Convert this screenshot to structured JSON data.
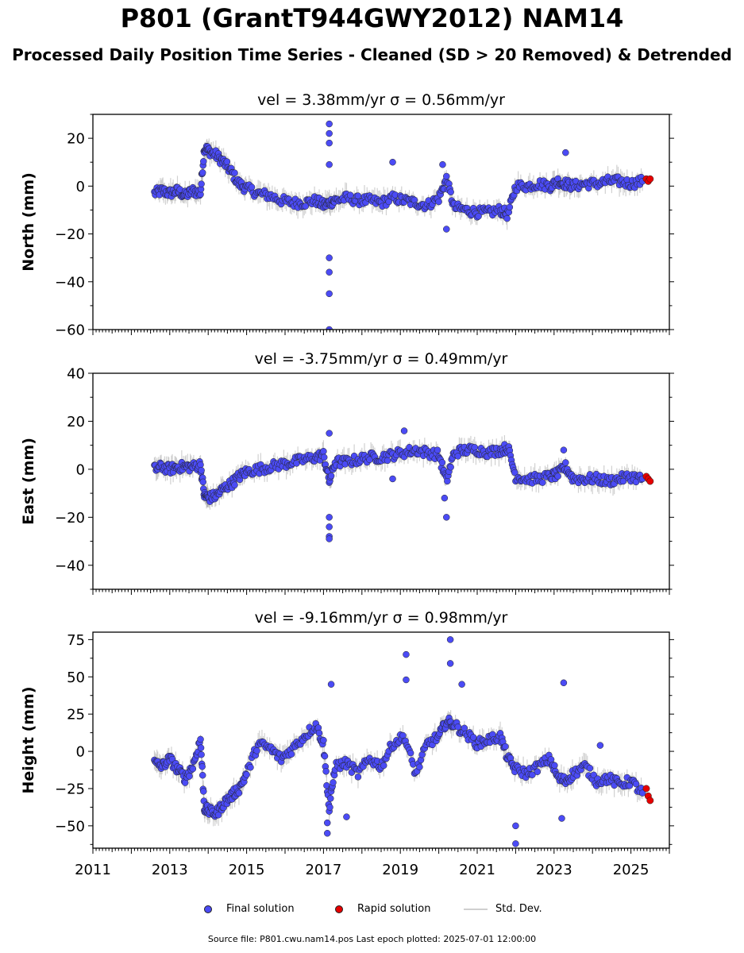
{
  "title": "P801 (GrantT944GWY2012) NAM14",
  "subtitle": "Processed Daily Position Time Series - Cleaned (SD > 20 Removed) & Detrended",
  "legend": {
    "final": "Final solution",
    "rapid": "Rapid solution",
    "std": "Std. Dev."
  },
  "footer": "Source file: P801.cwu.nam14.pos  Last epoch plotted: 2025-07-01 12:00:00",
  "colors": {
    "final": "#4b4bf5",
    "rapid": "#e60000",
    "std": "#999999",
    "edge": "#222222"
  },
  "chart_data": [
    {
      "type": "scatter",
      "title": "vel = 3.38mm/yr   σ = 0.56mm/yr",
      "ylabel": "North (mm)",
      "ylim": [
        -60,
        30
      ],
      "yticks": [
        -60,
        -40,
        -20,
        0,
        20
      ],
      "xlim": [
        2011,
        2026
      ],
      "series": [
        {
          "name": "Final solution",
          "x": [
            2012.6,
            2012.8,
            2013.0,
            2013.2,
            2013.4,
            2013.6,
            2013.8,
            2013.9,
            2014.0,
            2014.2,
            2014.4,
            2014.6,
            2014.8,
            2015.0,
            2015.3,
            2015.6,
            2015.9,
            2016.2,
            2016.5,
            2016.8,
            2017.0,
            2017.15,
            2017.3,
            2017.6,
            2017.9,
            2018.2,
            2018.5,
            2018.8,
            2019.1,
            2019.4,
            2019.7,
            2020.0,
            2020.2,
            2020.4,
            2020.7,
            2021.0,
            2021.3,
            2021.6,
            2021.8,
            2022.0,
            2022.3,
            2022.6,
            2022.9,
            2023.1,
            2023.3,
            2023.5,
            2023.8,
            2024.1,
            2024.4,
            2024.7,
            2025.0,
            2025.3
          ],
          "y": [
            -3,
            -2,
            -3,
            -2,
            -4,
            -2,
            -3,
            16,
            15,
            13,
            10,
            6,
            1,
            -1,
            -3,
            -4,
            -6,
            -7,
            -7,
            -6,
            -8,
            -7,
            -6,
            -5,
            -6,
            -6,
            -7,
            -5,
            -6,
            -7,
            -8,
            -5,
            3,
            -9,
            -10,
            -11,
            -11,
            -10,
            -12,
            0,
            0,
            1,
            0,
            2,
            1,
            0,
            1,
            1,
            2,
            2,
            1,
            2
          ]
        },
        {
          "name": "Rapid solution",
          "x": [
            2025.4,
            2025.45,
            2025.5
          ],
          "y": [
            3,
            2,
            3
          ]
        }
      ],
      "outliers": {
        "x": [
          2017.15,
          2017.15,
          2017.15,
          2017.15,
          2017.15,
          2017.15,
          2017.15,
          2017.15,
          2018.8,
          2020.1,
          2020.2,
          2023.3
        ],
        "y": [
          26,
          22,
          18,
          9,
          -30,
          -36,
          -45,
          -60,
          10,
          9,
          -18,
          14
        ]
      }
    },
    {
      "type": "scatter",
      "title": "vel = -3.75mm/yr   σ = 0.49mm/yr",
      "ylabel": "East (mm)",
      "ylim": [
        -50,
        40
      ],
      "yticks": [
        -40,
        -20,
        0,
        20,
        40
      ],
      "xlim": [
        2011,
        2026
      ],
      "series": [
        {
          "name": "Final solution",
          "x": [
            2012.6,
            2012.8,
            2013.0,
            2013.2,
            2013.4,
            2013.6,
            2013.8,
            2013.9,
            2014.0,
            2014.2,
            2014.4,
            2014.6,
            2014.8,
            2015.0,
            2015.3,
            2015.6,
            2015.9,
            2016.2,
            2016.5,
            2016.8,
            2017.0,
            2017.15,
            2017.3,
            2017.6,
            2017.9,
            2018.2,
            2018.5,
            2018.8,
            2019.1,
            2019.4,
            2019.7,
            2020.0,
            2020.2,
            2020.4,
            2020.7,
            2021.0,
            2021.3,
            2021.6,
            2021.8,
            2022.0,
            2022.3,
            2022.6,
            2022.9,
            2023.1,
            2023.3,
            2023.5,
            2023.8,
            2024.1,
            2024.4,
            2024.7,
            2025.0,
            2025.3
          ],
          "y": [
            0,
            1,
            0,
            1,
            1,
            1,
            2,
            -11,
            -12,
            -11,
            -8,
            -6,
            -3,
            -1,
            0,
            1,
            2,
            3,
            4,
            5,
            6,
            -5,
            3,
            3,
            4,
            5,
            5,
            6,
            7,
            8,
            7,
            6,
            -5,
            7,
            8,
            8,
            7,
            8,
            9,
            -3,
            -4,
            -4,
            -3,
            -2,
            1,
            -4,
            -4,
            -4,
            -5,
            -4,
            -3,
            -4
          ]
        },
        {
          "name": "Rapid solution",
          "x": [
            2025.4,
            2025.45,
            2025.5
          ],
          "y": [
            -3,
            -4,
            -5
          ]
        }
      ],
      "outliers": {
        "x": [
          2017.15,
          2017.15,
          2017.15,
          2017.15,
          2017.15,
          2018.8,
          2019.1,
          2020.15,
          2020.2,
          2023.25
        ],
        "y": [
          15,
          -20,
          -24,
          -28,
          -29,
          -4,
          16,
          -12,
          -20,
          8
        ]
      }
    },
    {
      "type": "scatter",
      "title": "vel = -9.16mm/yr   σ = 0.98mm/yr",
      "ylabel": "Height (mm)",
      "ylim": [
        -65,
        80
      ],
      "yticks": [
        -50,
        -25,
        0,
        25,
        50,
        75
      ],
      "xlim": [
        2011,
        2026
      ],
      "xticks": [
        2011,
        2013,
        2015,
        2017,
        2019,
        2021,
        2023,
        2025
      ],
      "series": [
        {
          "name": "Final solution",
          "x": [
            2012.6,
            2012.8,
            2013.0,
            2013.2,
            2013.4,
            2013.6,
            2013.8,
            2013.9,
            2014.0,
            2014.2,
            2014.4,
            2014.6,
            2014.8,
            2015.0,
            2015.3,
            2015.6,
            2015.9,
            2016.2,
            2016.5,
            2016.8,
            2017.0,
            2017.15,
            2017.3,
            2017.6,
            2017.9,
            2018.2,
            2018.5,
            2018.8,
            2019.1,
            2019.4,
            2019.7,
            2020.0,
            2020.2,
            2020.4,
            2020.7,
            2021.0,
            2021.3,
            2021.6,
            2021.8,
            2022.0,
            2022.3,
            2022.6,
            2022.9,
            2023.1,
            2023.3,
            2023.5,
            2023.8,
            2024.1,
            2024.4,
            2024.7,
            2025.0,
            2025.3
          ],
          "y": [
            -8,
            -10,
            -5,
            -12,
            -18,
            -10,
            8,
            -38,
            -40,
            -42,
            -35,
            -30,
            -25,
            -15,
            5,
            2,
            -5,
            2,
            10,
            18,
            5,
            -40,
            -10,
            -8,
            -15,
            -5,
            -10,
            5,
            10,
            -15,
            5,
            10,
            20,
            18,
            12,
            5,
            8,
            10,
            -5,
            -12,
            -15,
            -10,
            -5,
            -18,
            -20,
            -15,
            -10,
            -20,
            -18,
            -22,
            -20,
            -28
          ]
        },
        {
          "name": "Rapid solution",
          "x": [
            2025.4,
            2025.45,
            2025.5
          ],
          "y": [
            -25,
            -30,
            -33
          ]
        }
      ],
      "outliers": {
        "x": [
          2017.1,
          2017.1,
          2017.2,
          2017.6,
          2019.15,
          2019.15,
          2020.3,
          2020.3,
          2020.6,
          2022.0,
          2022.0,
          2023.25,
          2023.2,
          2024.2
        ],
        "y": [
          -55,
          -48,
          45,
          -44,
          65,
          48,
          75,
          59,
          45,
          -62,
          -50,
          46,
          -45,
          4
        ]
      }
    }
  ]
}
